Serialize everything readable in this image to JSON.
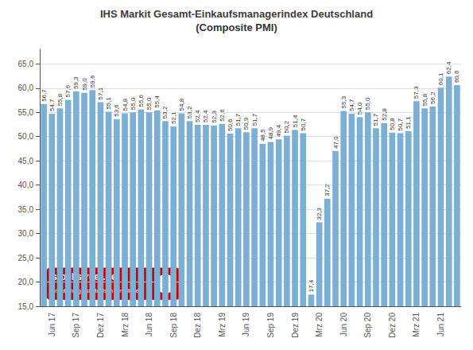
{
  "chart_data": {
    "type": "bar",
    "title": "IHS Markit Gesamt-Einkaufsmanagerindex Deutschland",
    "subtitle": "(Composite PMI)",
    "categories": [
      null,
      "Jun 17",
      null,
      null,
      "Sep 17",
      null,
      null,
      "Dez 17",
      null,
      null,
      "Mrz 18",
      null,
      null,
      "Jun 18",
      null,
      null,
      "Sep 18",
      null,
      null,
      "Dez 18",
      null,
      null,
      "Mrz 19",
      null,
      null,
      "Jun 19",
      null,
      null,
      "Sep 19",
      null,
      null,
      "Dez 19",
      null,
      null,
      "Mrz 20",
      null,
      null,
      "Jun 20",
      null,
      null,
      "Sep 20",
      null,
      null,
      "Dez 20",
      null,
      null,
      "Mrz 21",
      null,
      null,
      "Jun 21",
      null,
      null
    ],
    "values": [
      56.7,
      54.7,
      55.8,
      57.6,
      59.3,
      59.0,
      59.6,
      57.1,
      55.1,
      53.6,
      54.8,
      55.0,
      55.6,
      55.0,
      55.4,
      53.2,
      52.1,
      54.8,
      53.2,
      52.4,
      52.4,
      52.3,
      52.6,
      50.6,
      51.7,
      50.9,
      51.7,
      48.5,
      48.9,
      49.4,
      50.2,
      51.4,
      50.7,
      17.4,
      32.3,
      37.2,
      47.0,
      55.3,
      54.7,
      54.0,
      55.0,
      51.7,
      52.8,
      50.8,
      50.7,
      51.1,
      57.3,
      55.8,
      56.2,
      60.1,
      62.4,
      60.6
    ],
    "value_labels": [
      "56,7",
      "54,7",
      "55,8",
      "57,6",
      "59,3",
      "59,0",
      "59,6",
      "57,1",
      "55,1",
      "53,6",
      "54,8",
      "55,0",
      "55,6",
      "55,0",
      "55,4",
      "53,2",
      "52,1",
      "54,8",
      "53,2",
      "52,4",
      "52,4",
      "52,3",
      "52,6",
      "50,6",
      "51,7",
      "50,9",
      "51,7",
      "48,5",
      "48,9",
      "49,4",
      "50,2",
      "51,4",
      "50,7",
      "17,4",
      "32,3",
      "37,2",
      "47,0",
      "55,3",
      "54,7",
      "54,0",
      "55,0",
      "51,7",
      "52,8",
      "50,8",
      "50,7",
      "51,1",
      "57,3",
      "55,8",
      "56,2",
      "60,1",
      "62,4",
      "60,6"
    ],
    "color": "#7BAFD4",
    "ylim": [
      15,
      68
    ],
    "yticks": [
      {
        "value": 15,
        "label": "15,0"
      },
      {
        "value": 20,
        "label": "20,0"
      },
      {
        "value": 25,
        "label": "25,0"
      },
      {
        "value": 30,
        "label": "30,0"
      },
      {
        "value": 35,
        "label": "35,0"
      },
      {
        "value": 40,
        "label": "40,0"
      },
      {
        "value": 45,
        "label": "45,0"
      },
      {
        "value": 50,
        "label": "50,0"
      },
      {
        "value": 55,
        "label": "55,0"
      },
      {
        "value": 60,
        "label": "60,0"
      },
      {
        "value": 65,
        "label": "65,0"
      }
    ],
    "grid": true,
    "data_labels": true,
    "annotations": [
      "stockstreet.de",
      "unabhängig • strategisch • trefflicher",
      "✓"
    ]
  }
}
